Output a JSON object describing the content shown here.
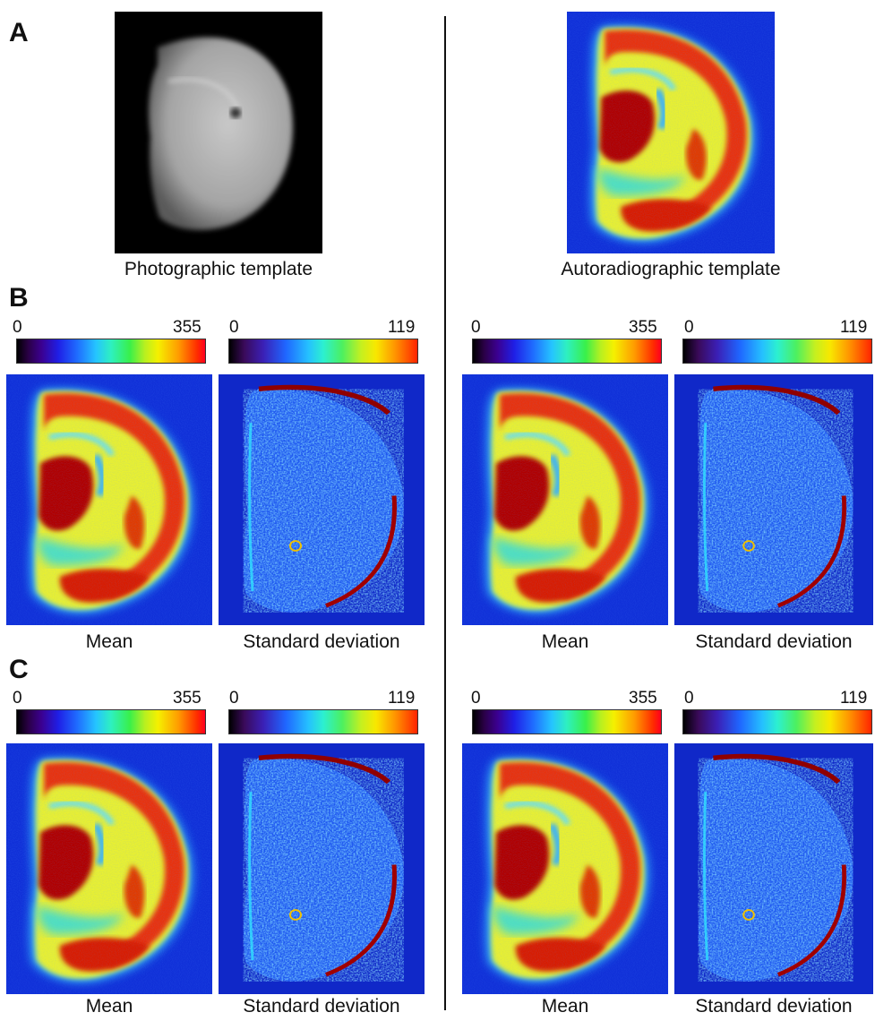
{
  "panels": {
    "a": {
      "letter": "A"
    },
    "b": {
      "letter": "B"
    },
    "c": {
      "letter": "C"
    }
  },
  "top": {
    "photo_caption": "Photographic template",
    "auto_caption": "Autoradiographic template"
  },
  "colorbar": {
    "mean_min": "0",
    "mean_max": "355",
    "sd_min": "0",
    "sd_max": "119"
  },
  "captions": {
    "mean": "Mean",
    "sd": "Standard deviation"
  }
}
